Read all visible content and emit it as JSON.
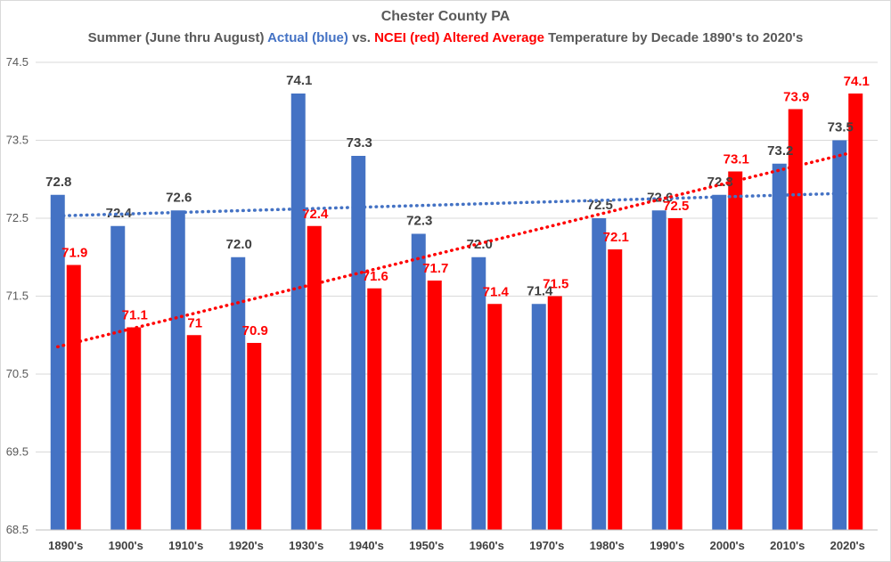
{
  "chart_data": {
    "type": "bar",
    "title": "Chester County PA",
    "subtitle": {
      "part1": "Summer (June thru August) ",
      "actual": "Actual (blue)",
      "part2": " vs. ",
      "altered": "NCEI (red) Altered Average",
      "part3": " Temperature by Decade 1890's to 2020's"
    },
    "categories": [
      "1890's",
      "1900's",
      "1910's",
      "1920's",
      "1930's",
      "1940's",
      "1950's",
      "1960's",
      "1970's",
      "1980's",
      "1990's",
      "2000's",
      "2010's",
      "2020's"
    ],
    "series": [
      {
        "name": "Actual",
        "color": "#4472c4",
        "values": [
          72.8,
          72.4,
          72.6,
          72.0,
          74.1,
          73.3,
          72.3,
          72.0,
          71.4,
          72.5,
          72.6,
          72.8,
          73.2,
          73.5
        ],
        "labels": [
          "72.8",
          "72.4",
          "72.6",
          "72.0",
          "74.1",
          "73.3",
          "72.3",
          "72.0",
          "71.4",
          "72.5",
          "72.6",
          "72.8",
          "73.2",
          "73.5"
        ]
      },
      {
        "name": "NCEI Altered",
        "color": "#ff0000",
        "values": [
          71.9,
          71.1,
          71.0,
          70.9,
          72.4,
          71.6,
          71.7,
          71.4,
          71.5,
          72.1,
          72.5,
          73.1,
          73.9,
          74.1
        ],
        "labels": [
          "71.9",
          "71.1",
          "71",
          "70.9",
          "72.4",
          "71.6",
          "71.7",
          "71.4",
          "71.5",
          "72.1",
          "72.5",
          "73.1",
          "73.9",
          "74.1"
        ]
      }
    ],
    "trendlines": [
      {
        "series": "Actual",
        "color": "#4472c4",
        "start": 72.53,
        "end": 72.82
      },
      {
        "series": "NCEI Altered",
        "color": "#ff0000",
        "start": 70.85,
        "end": 73.33
      }
    ],
    "ylim": [
      68.5,
      74.5
    ],
    "yticks": [
      "74.5",
      "73.5",
      "72.5",
      "71.5",
      "70.5",
      "69.5",
      "68.5"
    ],
    "grid": true,
    "xlabel": "",
    "ylabel": ""
  }
}
